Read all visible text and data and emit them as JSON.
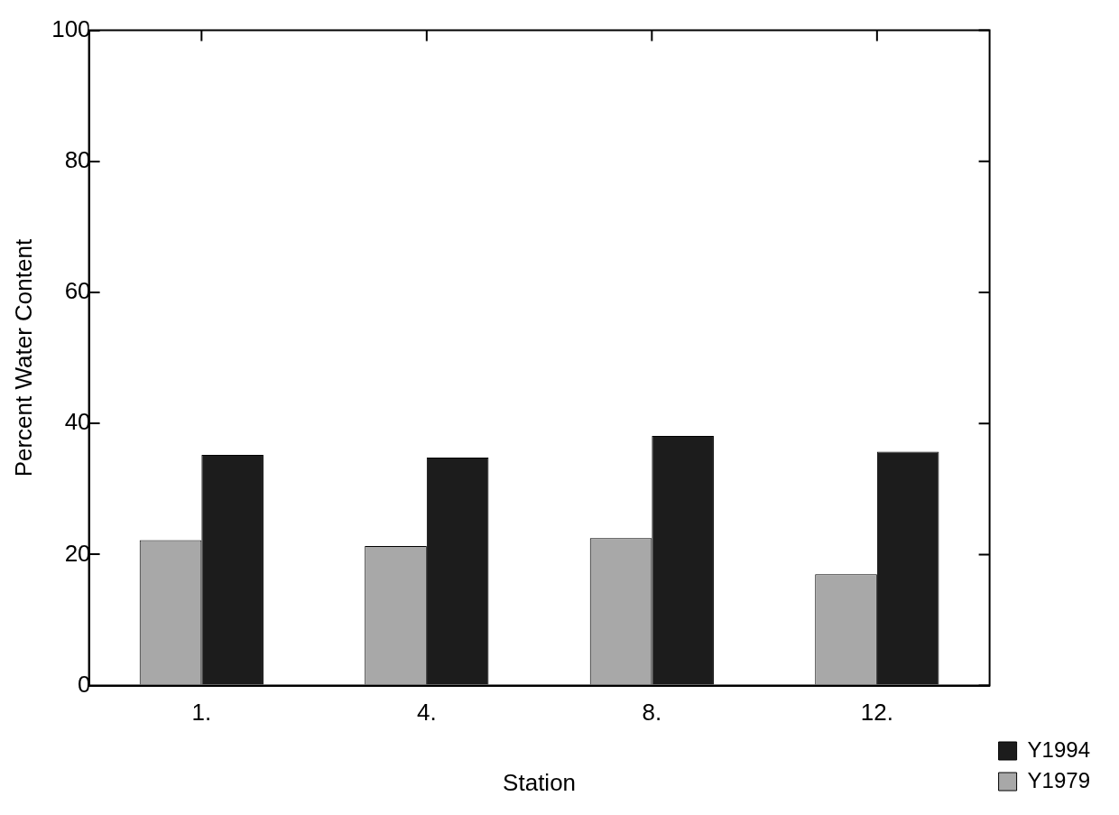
{
  "chart_data": {
    "type": "bar",
    "xlabel": "Station",
    "ylabel": "Percent Water Content",
    "categories": [
      "1.",
      "4.",
      "8.",
      "12."
    ],
    "series": [
      {
        "name": "Y1979",
        "color": "#a8a8a8",
        "values": [
          22.2,
          21.3,
          22.5,
          17.0
        ]
      },
      {
        "name": "Y1994",
        "color": "#1c1c1c",
        "values": [
          35.2,
          34.8,
          38.1,
          35.7
        ]
      }
    ],
    "ylim": [
      0,
      100
    ],
    "yticks": [
      0,
      20,
      40,
      60,
      80,
      100
    ],
    "grid": false,
    "legend": "bottom right"
  }
}
